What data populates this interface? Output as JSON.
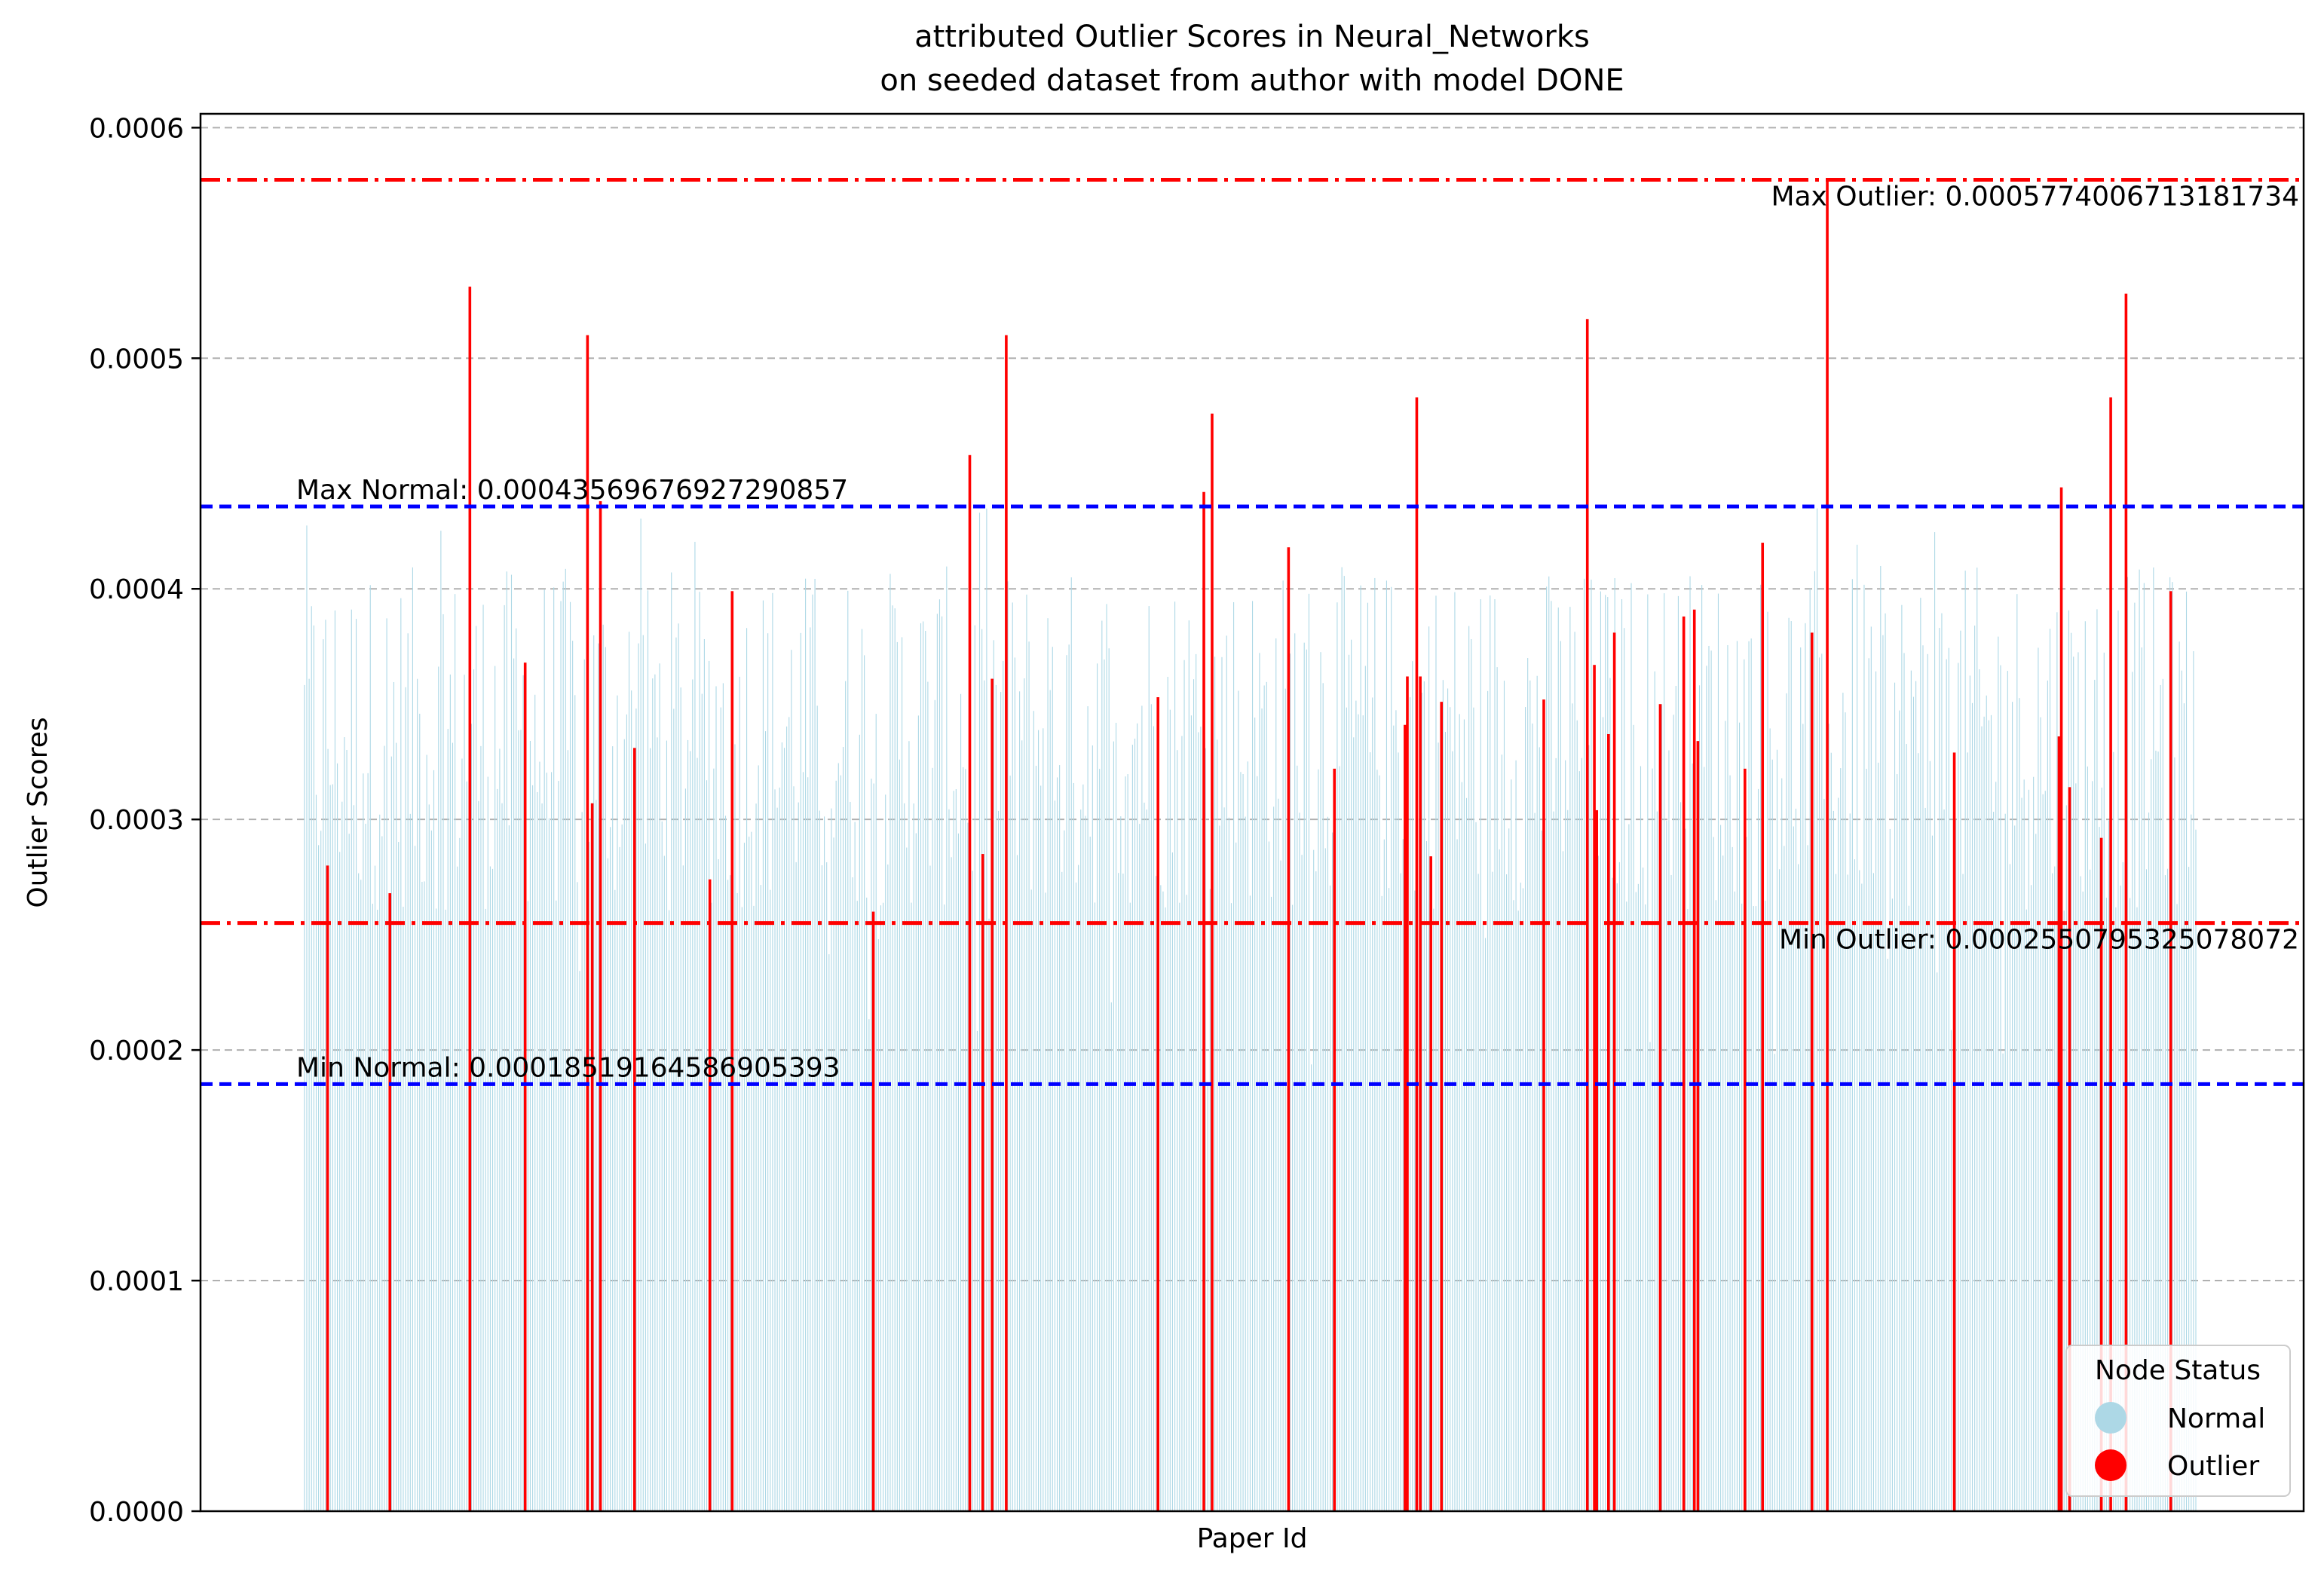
{
  "chart_data": {
    "type": "bar",
    "title": "attributed Outlier Scores in Neural_Networks",
    "subtitle": "on seeded dataset from author with model DONE",
    "xlabel": "Paper Id",
    "ylabel": "Outlier Scores",
    "ylim": [
      0,
      0.000606
    ],
    "xlim": [
      -88,
      1700
    ],
    "yticks": [
      0.0,
      0.0001,
      0.0002,
      0.0003,
      0.0004,
      0.0005,
      0.0006
    ],
    "ytick_labels": [
      "0.0000",
      "0.0001",
      "0.0002",
      "0.0003",
      "0.0004",
      "0.0005",
      "0.0006"
    ],
    "grid": "y-dashed",
    "legend": {
      "title": "Node Status",
      "placement": "bottom-right",
      "entries": [
        {
          "label": "Normal",
          "color": "#add8e6"
        },
        {
          "label": "Outlier",
          "color": "#ff0000"
        }
      ]
    },
    "reference_lines": [
      {
        "name": "max-outlier",
        "value": 0.0005774006713181734,
        "label": "Max Outlier: 0.0005774006713181734",
        "color": "#ff0000",
        "style": "dashdot",
        "label_align": "right"
      },
      {
        "name": "max-normal",
        "value": 0.00043569676927290857,
        "label": "Max Normal: 0.00043569676927290857",
        "color": "#0000ff",
        "style": "dashed",
        "label_align": "left"
      },
      {
        "name": "min-outlier",
        "value": 0.0002550795325078072,
        "label": "Min Outlier: 0.0002550795325078072",
        "color": "#ff0000",
        "style": "dashdot",
        "label_align": "right"
      },
      {
        "name": "min-normal",
        "value": 0.00018519164586905393,
        "label": "Min Normal: 0.00018519164586905393",
        "color": "#0000ff",
        "style": "dashed",
        "label_align": "left"
      }
    ],
    "series": [
      {
        "name": "Normal",
        "color": "#add8e6",
        "x_range": [
          0,
          1608
        ],
        "value_min": 0.00018519164586905393,
        "value_max": 0.00043569676927290857,
        "typical_range": [
          0.00026,
          0.00041
        ]
      },
      {
        "name": "Outlier",
        "color": "#ff0000",
        "points": [
          {
            "x": 20,
            "y": 0.00028
          },
          {
            "x": 73,
            "y": 0.000268
          },
          {
            "x": 141,
            "y": 0.000531
          },
          {
            "x": 188,
            "y": 0.000368
          },
          {
            "x": 241,
            "y": 0.00051
          },
          {
            "x": 245,
            "y": 0.000307
          },
          {
            "x": 252,
            "y": 0.000438
          },
          {
            "x": 281,
            "y": 0.000331
          },
          {
            "x": 345,
            "y": 0.000274
          },
          {
            "x": 364,
            "y": 0.000399
          },
          {
            "x": 484,
            "y": 0.00026
          },
          {
            "x": 566,
            "y": 0.000458
          },
          {
            "x": 577,
            "y": 0.000285
          },
          {
            "x": 585,
            "y": 0.000361
          },
          {
            "x": 597,
            "y": 0.00051
          },
          {
            "x": 726,
            "y": 0.000353
          },
          {
            "x": 765,
            "y": 0.000442
          },
          {
            "x": 772,
            "y": 0.000476
          },
          {
            "x": 837,
            "y": 0.000418
          },
          {
            "x": 876,
            "y": 0.000322
          },
          {
            "x": 936,
            "y": 0.000341
          },
          {
            "x": 938,
            "y": 0.000362
          },
          {
            "x": 946,
            "y": 0.000483
          },
          {
            "x": 949,
            "y": 0.000362
          },
          {
            "x": 958,
            "y": 0.000284
          },
          {
            "x": 967,
            "y": 0.000351
          },
          {
            "x": 1054,
            "y": 0.000352
          },
          {
            "x": 1091,
            "y": 0.000517
          },
          {
            "x": 1097,
            "y": 0.000367
          },
          {
            "x": 1099,
            "y": 0.000304
          },
          {
            "x": 1109,
            "y": 0.000337
          },
          {
            "x": 1114,
            "y": 0.000381
          },
          {
            "x": 1153,
            "y": 0.00035
          },
          {
            "x": 1173,
            "y": 0.000388
          },
          {
            "x": 1182,
            "y": 0.000391
          },
          {
            "x": 1185,
            "y": 0.000334
          },
          {
            "x": 1225,
            "y": 0.000322
          },
          {
            "x": 1240,
            "y": 0.00042
          },
          {
            "x": 1282,
            "y": 0.000381
          },
          {
            "x": 1295,
            "y": 0.000577
          },
          {
            "x": 1403,
            "y": 0.000329
          },
          {
            "x": 1492,
            "y": 0.000336
          },
          {
            "x": 1494,
            "y": 0.000444
          },
          {
            "x": 1501,
            "y": 0.000314
          },
          {
            "x": 1528,
            "y": 0.000292
          },
          {
            "x": 1536,
            "y": 0.000483
          },
          {
            "x": 1549,
            "y": 0.000528
          },
          {
            "x": 1587,
            "y": 0.000399
          }
        ]
      }
    ]
  }
}
